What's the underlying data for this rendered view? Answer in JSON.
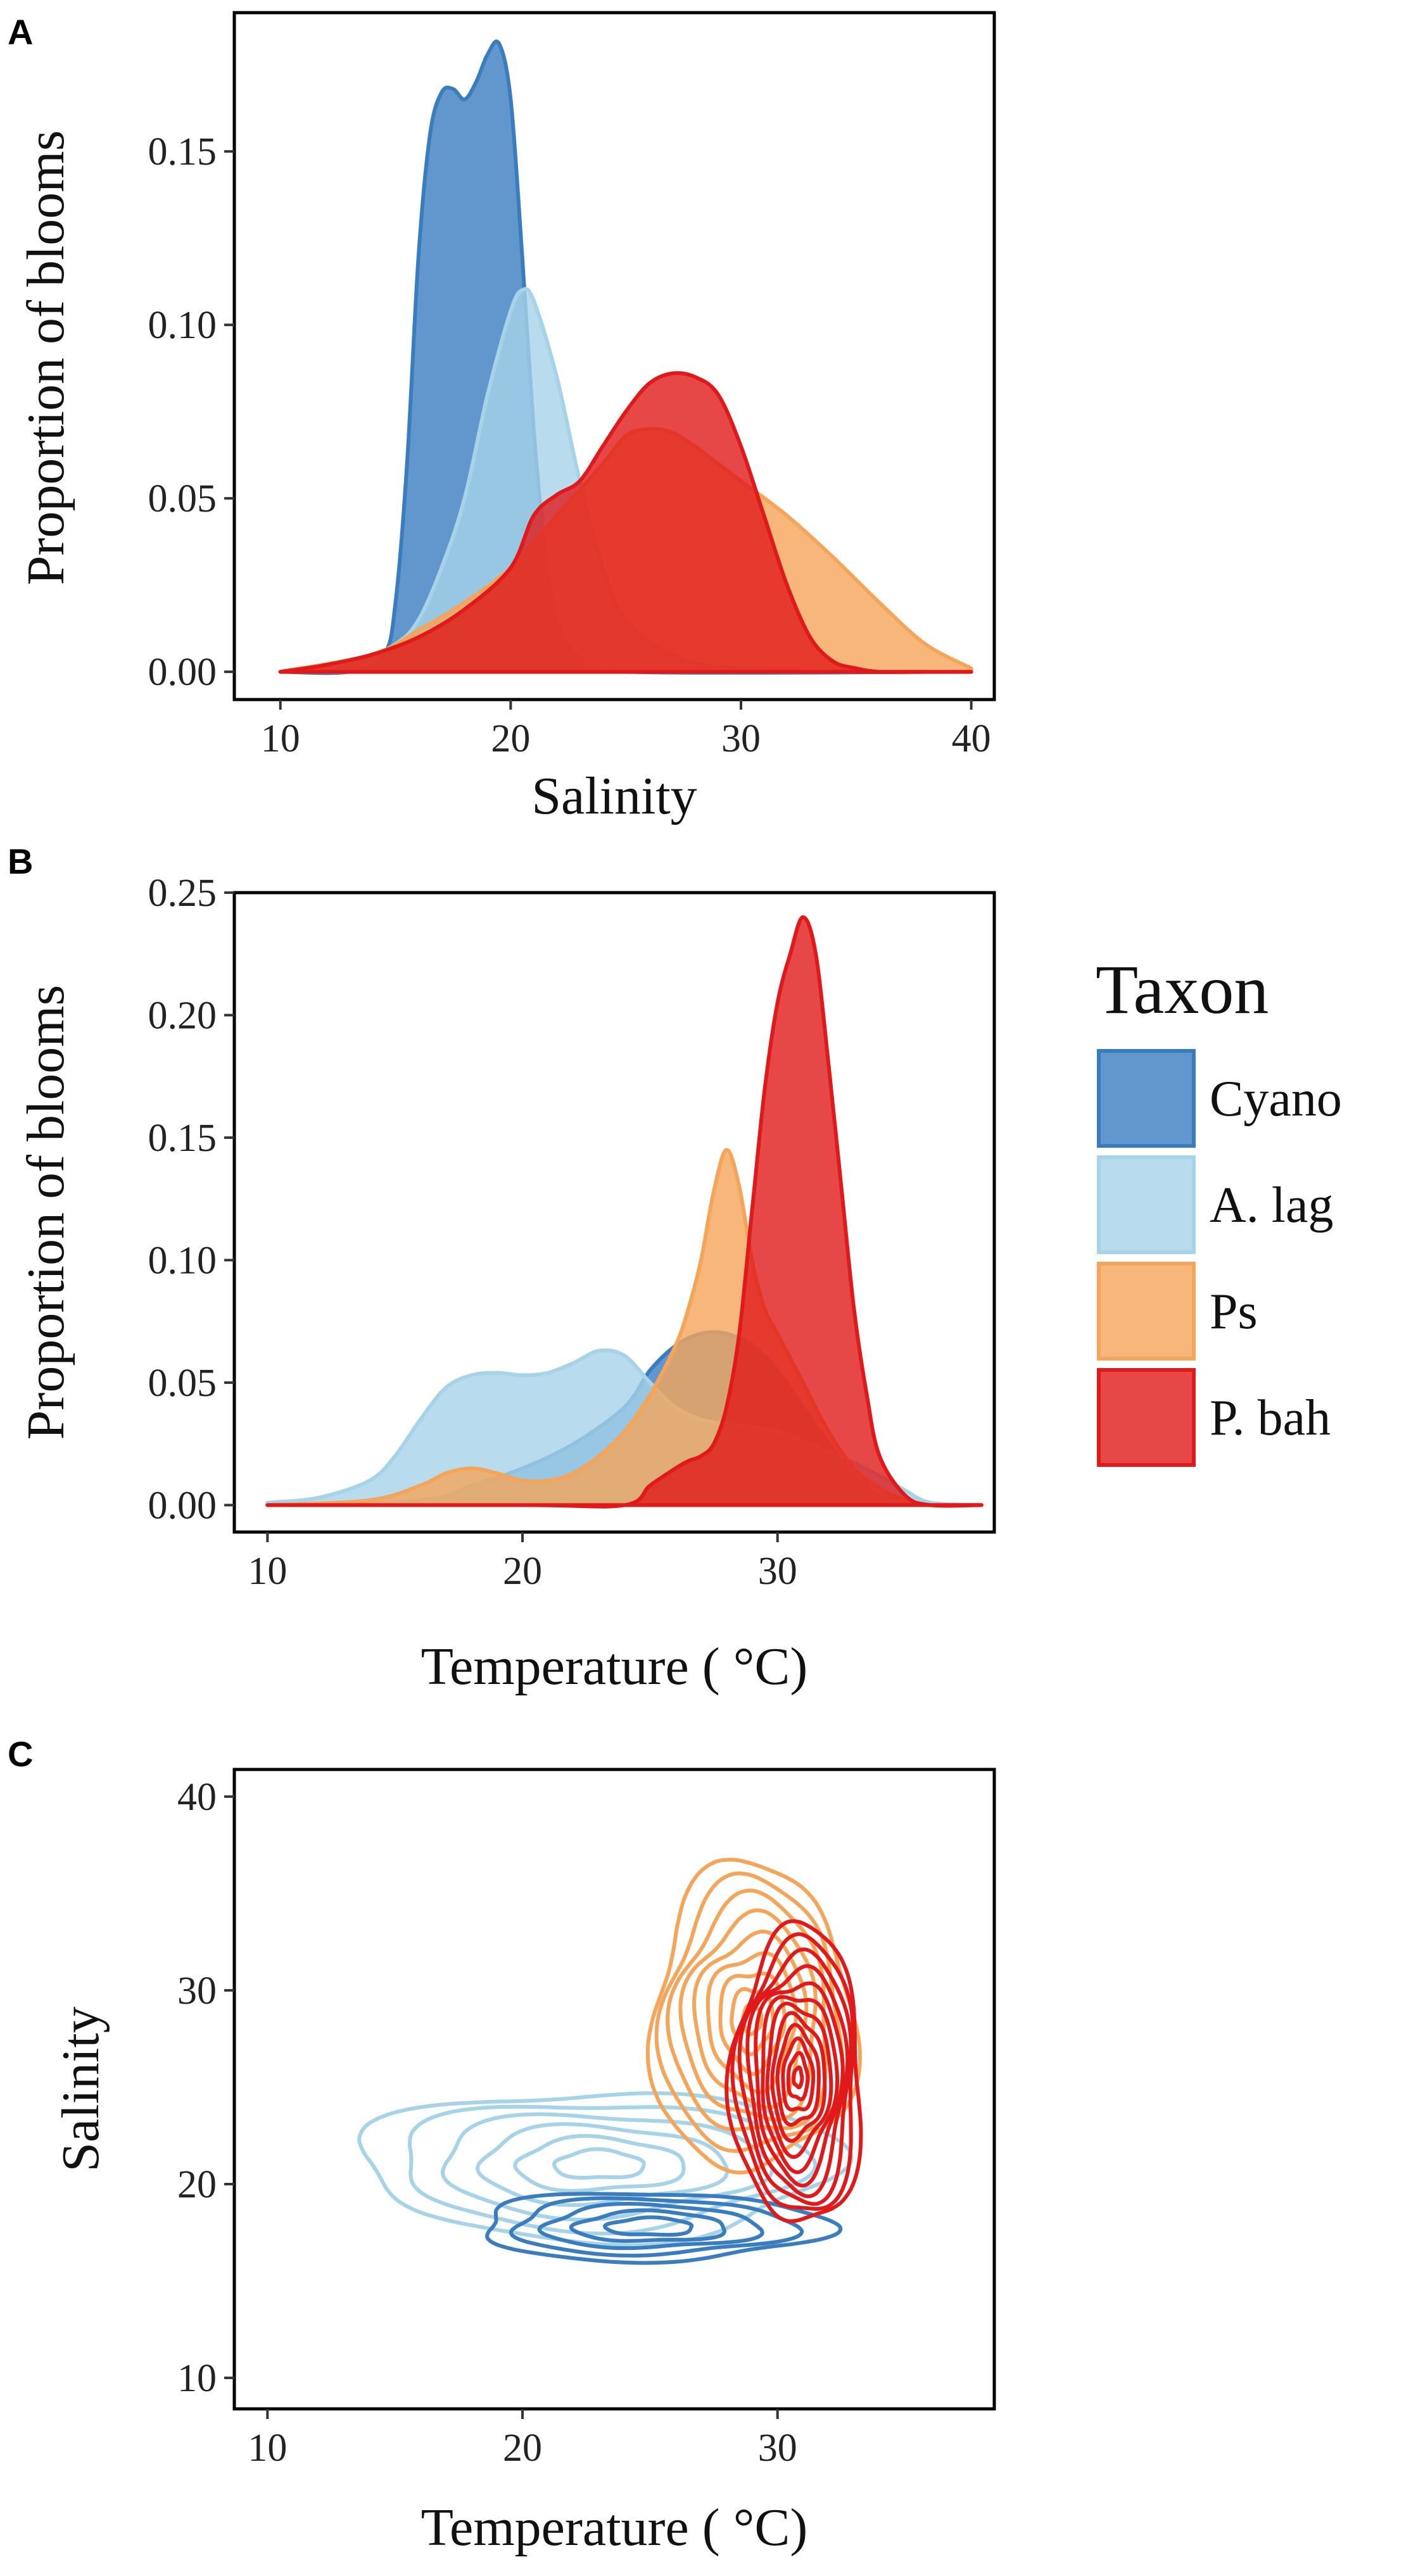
{
  "colors": {
    "Cyano": "#3a7dbf",
    "A. lag": "#a6d3e8",
    "Ps": "#f5a55a",
    "P. bah": "#e01a1a"
  },
  "legend": {
    "title": "Taxon",
    "items": [
      "Cyano",
      "A. lag",
      "Ps",
      "P. bah"
    ]
  },
  "chart_data": [
    {
      "panel": "A",
      "type": "area",
      "xlabel": "Salinity",
      "ylabel": "Proportion of blooms",
      "xlim": [
        8,
        41
      ],
      "ylim": [
        -0.008,
        0.19
      ],
      "xticks": [
        10,
        20,
        30,
        40
      ],
      "yticks": [
        0.0,
        0.05,
        0.1,
        0.15
      ],
      "ytick_labels": [
        "0.00",
        "0.05",
        "0.10",
        "0.15"
      ],
      "series": [
        {
          "name": "Cyano",
          "x": [
            10,
            13,
            14.5,
            15,
            15.5,
            16,
            16.5,
            17,
            17.5,
            18,
            18.5,
            19,
            19.5,
            20,
            20.5,
            21,
            21.5,
            22,
            23,
            25,
            40
          ],
          "y": [
            0,
            0,
            0.005,
            0.02,
            0.06,
            0.12,
            0.155,
            0.167,
            0.168,
            0.165,
            0.17,
            0.178,
            0.181,
            0.165,
            0.12,
            0.07,
            0.035,
            0.015,
            0.004,
            0,
            0
          ]
        },
        {
          "name": "A. lag",
          "x": [
            10,
            13,
            15,
            16,
            17,
            18,
            19,
            20,
            20.5,
            21,
            22,
            23,
            24,
            25,
            27,
            30,
            40
          ],
          "y": [
            0,
            0.002,
            0.008,
            0.015,
            0.03,
            0.05,
            0.08,
            0.104,
            0.11,
            0.107,
            0.085,
            0.055,
            0.03,
            0.015,
            0.005,
            0.001,
            0
          ]
        },
        {
          "name": "Ps",
          "x": [
            10,
            14,
            16,
            18,
            20,
            22,
            24,
            25,
            26,
            27,
            28,
            29,
            30,
            32,
            34,
            36,
            38,
            40
          ],
          "y": [
            0,
            0.005,
            0.012,
            0.02,
            0.03,
            0.045,
            0.06,
            0.068,
            0.07,
            0.069,
            0.065,
            0.06,
            0.055,
            0.045,
            0.033,
            0.02,
            0.008,
            0.001
          ]
        },
        {
          "name": "P. bah",
          "x": [
            10,
            12,
            14,
            16,
            18,
            20,
            21,
            22,
            23,
            24,
            25,
            26,
            27,
            28,
            29,
            30,
            31,
            32,
            33,
            34,
            35,
            36,
            38,
            40
          ],
          "y": [
            0,
            0.002,
            0.005,
            0.01,
            0.018,
            0.03,
            0.045,
            0.051,
            0.055,
            0.065,
            0.075,
            0.083,
            0.086,
            0.085,
            0.08,
            0.065,
            0.045,
            0.025,
            0.01,
            0.003,
            0.001,
            0,
            0,
            0
          ]
        }
      ]
    },
    {
      "panel": "B",
      "type": "area",
      "xlabel": "Temperature ( °C)",
      "ylabel": "Proportion of blooms",
      "xlim": [
        8.7,
        38.5
      ],
      "ylim": [
        -0.011,
        0.25
      ],
      "xticks": [
        10,
        20,
        30
      ],
      "yticks": [
        0.0,
        0.05,
        0.1,
        0.15,
        0.2,
        0.25
      ],
      "ytick_labels": [
        "0.00",
        "0.05",
        "0.10",
        "0.15",
        "0.20",
        "0.25"
      ],
      "series": [
        {
          "name": "Cyano",
          "x": [
            10,
            16,
            18,
            20,
            22,
            24,
            25,
            26,
            27,
            28,
            29,
            30,
            31,
            32,
            33,
            34,
            35,
            36,
            38
          ],
          "y": [
            0,
            0.002,
            0.008,
            0.015,
            0.025,
            0.04,
            0.055,
            0.065,
            0.07,
            0.07,
            0.065,
            0.055,
            0.04,
            0.025,
            0.012,
            0.004,
            0.001,
            0,
            0
          ]
        },
        {
          "name": "A. lag",
          "x": [
            10,
            12,
            14,
            15,
            16,
            17,
            18,
            19,
            20,
            21,
            22,
            23,
            24,
            25,
            26,
            27,
            28,
            30,
            32,
            34,
            35,
            36,
            38
          ],
          "y": [
            0.001,
            0.003,
            0.01,
            0.02,
            0.035,
            0.048,
            0.053,
            0.054,
            0.053,
            0.054,
            0.058,
            0.063,
            0.061,
            0.05,
            0.04,
            0.035,
            0.033,
            0.03,
            0.022,
            0.012,
            0.006,
            0.001,
            0
          ]
        },
        {
          "name": "Ps",
          "x": [
            10,
            14,
            16,
            17,
            18,
            19,
            20,
            21,
            22,
            23,
            24,
            25,
            26,
            26.5,
            27,
            27.5,
            28,
            28.5,
            29,
            29.5,
            30,
            31,
            32,
            33,
            34,
            35,
            36,
            38
          ],
          "y": [
            0,
            0.002,
            0.008,
            0.013,
            0.015,
            0.013,
            0.01,
            0.01,
            0.013,
            0.02,
            0.03,
            0.045,
            0.065,
            0.08,
            0.1,
            0.128,
            0.145,
            0.13,
            0.1,
            0.08,
            0.07,
            0.05,
            0.03,
            0.015,
            0.007,
            0.002,
            0,
            0
          ]
        },
        {
          "name": "P. bah",
          "x": [
            10,
            20,
            24,
            25,
            26,
            26.5,
            27,
            27.5,
            28,
            28.5,
            29,
            29.5,
            30,
            30.5,
            31,
            31.5,
            32,
            32.5,
            33,
            33.5,
            34,
            35,
            36,
            38
          ],
          "y": [
            0,
            0,
            0,
            0.008,
            0.015,
            0.018,
            0.02,
            0.025,
            0.04,
            0.07,
            0.12,
            0.17,
            0.205,
            0.225,
            0.24,
            0.225,
            0.18,
            0.13,
            0.08,
            0.045,
            0.02,
            0.004,
            0,
            0
          ]
        }
      ]
    },
    {
      "panel": "C",
      "type": "contour",
      "xlabel": "Temperature ( °C)",
      "ylabel": "Salinity",
      "xlim": [
        8.7,
        38.5
      ],
      "ylim": [
        8.4,
        41.4
      ],
      "xticks": [
        10,
        20,
        30
      ],
      "yticks": [
        10,
        20,
        30,
        40
      ],
      "series": [
        {
          "name": "A. lag",
          "center": [
            23,
            21
          ],
          "spread": [
            11,
            4.5
          ],
          "levels": [
            0.15,
            0.28,
            0.42,
            0.56,
            0.7,
            0.84
          ]
        },
        {
          "name": "Cyano",
          "center": [
            25,
            17.8
          ],
          "spread": [
            8.5,
            2.2
          ],
          "levels": [
            0.2,
            0.35,
            0.5,
            0.65,
            0.8
          ]
        },
        {
          "name": "Ps",
          "center": [
            29,
            28.5
          ],
          "spread": [
            4.5,
            9
          ],
          "levels": [
            0.12,
            0.22,
            0.32,
            0.42,
            0.52,
            0.62,
            0.72,
            0.82,
            0.92
          ]
        },
        {
          "name": "P. bah",
          "center": [
            30.8,
            25.5
          ],
          "spread": [
            2.7,
            8.2
          ],
          "levels": [
            0.06,
            0.14,
            0.22,
            0.3,
            0.38,
            0.46,
            0.54,
            0.62,
            0.7,
            0.78,
            0.86,
            0.94
          ]
        }
      ]
    }
  ]
}
